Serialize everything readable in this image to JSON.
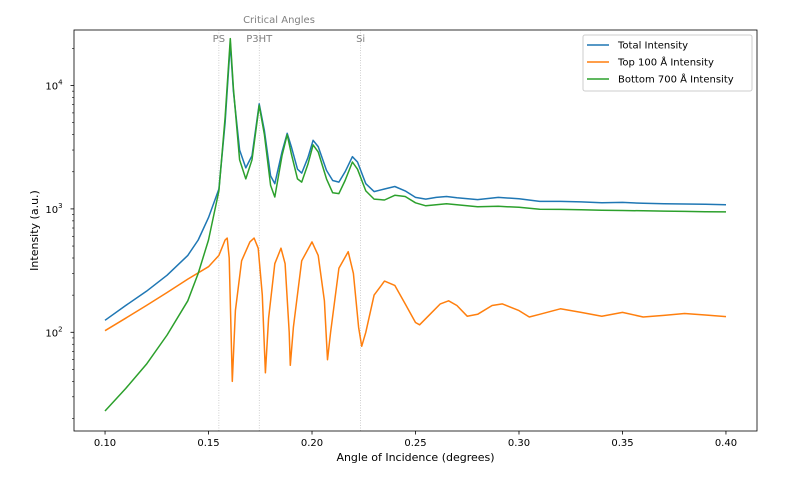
{
  "chart_data": {
    "type": "line",
    "xlabel": "Angle of Incidence (degrees)",
    "ylabel": "Intensity (a.u.)",
    "xlim": [
      0.085,
      0.415
    ],
    "ylim_log10": [
      1.2,
      4.45
    ],
    "yscale": "log",
    "grid": false,
    "legend_position": "top-right",
    "x_ticks": [
      {
        "value": 0.1,
        "label": "0.10"
      },
      {
        "value": 0.15,
        "label": "0.15"
      },
      {
        "value": 0.2,
        "label": "0.20"
      },
      {
        "value": 0.25,
        "label": "0.25"
      },
      {
        "value": 0.3,
        "label": "0.30"
      },
      {
        "value": 0.35,
        "label": "0.35"
      },
      {
        "value": 0.4,
        "label": "0.40"
      }
    ],
    "y_ticks": [
      {
        "value": 100,
        "base": "10",
        "exp": "2"
      },
      {
        "value": 1000,
        "base": "10",
        "exp": "3"
      },
      {
        "value": 10000,
        "base": "10",
        "exp": "4"
      }
    ],
    "critical_angles": {
      "title": "Critical Angles",
      "color": "#bbbbbb",
      "lines": [
        {
          "label": "PS",
          "x": 0.155
        },
        {
          "label": "P3HT",
          "x": 0.1745
        },
        {
          "label": "Si",
          "x": 0.2235
        }
      ]
    },
    "series": [
      {
        "name": "Total Intensity",
        "color": "#1f77b4",
        "points": [
          [
            0.1,
            125
          ],
          [
            0.11,
            165
          ],
          [
            0.12,
            215
          ],
          [
            0.13,
            290
          ],
          [
            0.14,
            420
          ],
          [
            0.145,
            560
          ],
          [
            0.15,
            850
          ],
          [
            0.155,
            1450
          ],
          [
            0.158,
            5000
          ],
          [
            0.1605,
            22000
          ],
          [
            0.162,
            9000
          ],
          [
            0.165,
            3000
          ],
          [
            0.168,
            2150
          ],
          [
            0.171,
            2700
          ],
          [
            0.1745,
            7100
          ],
          [
            0.177,
            4300
          ],
          [
            0.18,
            1850
          ],
          [
            0.182,
            1600
          ],
          [
            0.1855,
            2900
          ],
          [
            0.188,
            4100
          ],
          [
            0.19,
            3200
          ],
          [
            0.193,
            2100
          ],
          [
            0.195,
            1950
          ],
          [
            0.198,
            2600
          ],
          [
            0.2005,
            3600
          ],
          [
            0.203,
            3200
          ],
          [
            0.207,
            2050
          ],
          [
            0.21,
            1700
          ],
          [
            0.213,
            1650
          ],
          [
            0.216,
            2000
          ],
          [
            0.2195,
            2650
          ],
          [
            0.222,
            2400
          ],
          [
            0.226,
            1600
          ],
          [
            0.23,
            1380
          ],
          [
            0.235,
            1450
          ],
          [
            0.24,
            1520
          ],
          [
            0.245,
            1400
          ],
          [
            0.25,
            1240
          ],
          [
            0.255,
            1200
          ],
          [
            0.26,
            1240
          ],
          [
            0.265,
            1260
          ],
          [
            0.27,
            1230
          ],
          [
            0.28,
            1190
          ],
          [
            0.29,
            1240
          ],
          [
            0.3,
            1210
          ],
          [
            0.31,
            1150
          ],
          [
            0.32,
            1150
          ],
          [
            0.33,
            1140
          ],
          [
            0.34,
            1120
          ],
          [
            0.35,
            1130
          ],
          [
            0.36,
            1110
          ],
          [
            0.37,
            1100
          ],
          [
            0.38,
            1095
          ],
          [
            0.39,
            1090
          ],
          [
            0.4,
            1080
          ]
        ]
      },
      {
        "name": "Top 100 Å Intensity",
        "color": "#ff7f0e",
        "points": [
          [
            0.1,
            103
          ],
          [
            0.11,
            130
          ],
          [
            0.12,
            165
          ],
          [
            0.13,
            210
          ],
          [
            0.14,
            270
          ],
          [
            0.15,
            340
          ],
          [
            0.155,
            420
          ],
          [
            0.158,
            560
          ],
          [
            0.159,
            580
          ],
          [
            0.16,
            400
          ],
          [
            0.1615,
            40
          ],
          [
            0.163,
            150
          ],
          [
            0.166,
            380
          ],
          [
            0.17,
            540
          ],
          [
            0.172,
            580
          ],
          [
            0.174,
            480
          ],
          [
            0.176,
            200
          ],
          [
            0.1775,
            47
          ],
          [
            0.179,
            130
          ],
          [
            0.182,
            360
          ],
          [
            0.185,
            480
          ],
          [
            0.187,
            360
          ],
          [
            0.189,
            100
          ],
          [
            0.1895,
            54
          ],
          [
            0.191,
            110
          ],
          [
            0.195,
            380
          ],
          [
            0.2,
            540
          ],
          [
            0.203,
            420
          ],
          [
            0.206,
            180
          ],
          [
            0.2075,
            60
          ],
          [
            0.209,
            100
          ],
          [
            0.213,
            330
          ],
          [
            0.2175,
            450
          ],
          [
            0.22,
            300
          ],
          [
            0.2225,
            110
          ],
          [
            0.224,
            77
          ],
          [
            0.226,
            100
          ],
          [
            0.23,
            200
          ],
          [
            0.235,
            260
          ],
          [
            0.24,
            240
          ],
          [
            0.245,
            170
          ],
          [
            0.25,
            120
          ],
          [
            0.252,
            115
          ],
          [
            0.257,
            140
          ],
          [
            0.262,
            170
          ],
          [
            0.266,
            180
          ],
          [
            0.27,
            165
          ],
          [
            0.275,
            135
          ],
          [
            0.28,
            140
          ],
          [
            0.287,
            165
          ],
          [
            0.292,
            170
          ],
          [
            0.3,
            150
          ],
          [
            0.305,
            133
          ],
          [
            0.31,
            140
          ],
          [
            0.32,
            155
          ],
          [
            0.33,
            145
          ],
          [
            0.34,
            135
          ],
          [
            0.35,
            145
          ],
          [
            0.36,
            133
          ],
          [
            0.37,
            137
          ],
          [
            0.38,
            142
          ],
          [
            0.39,
            138
          ],
          [
            0.4,
            134
          ]
        ]
      },
      {
        "name": "Bottom 700 Å Intensity",
        "color": "#2ca02c",
        "points": [
          [
            0.1,
            23
          ],
          [
            0.11,
            35
          ],
          [
            0.12,
            55
          ],
          [
            0.13,
            95
          ],
          [
            0.14,
            180
          ],
          [
            0.145,
            300
          ],
          [
            0.15,
            560
          ],
          [
            0.155,
            1400
          ],
          [
            0.158,
            5500
          ],
          [
            0.1605,
            24000
          ],
          [
            0.162,
            9500
          ],
          [
            0.165,
            2500
          ],
          [
            0.168,
            1750
          ],
          [
            0.171,
            2500
          ],
          [
            0.1745,
            6900
          ],
          [
            0.177,
            4000
          ],
          [
            0.18,
            1550
          ],
          [
            0.182,
            1250
          ],
          [
            0.1855,
            2700
          ],
          [
            0.188,
            4000
          ],
          [
            0.19,
            2800
          ],
          [
            0.193,
            1750
          ],
          [
            0.195,
            1650
          ],
          [
            0.198,
            2300
          ],
          [
            0.2005,
            3300
          ],
          [
            0.203,
            2900
          ],
          [
            0.207,
            1750
          ],
          [
            0.21,
            1350
          ],
          [
            0.213,
            1330
          ],
          [
            0.216,
            1700
          ],
          [
            0.2195,
            2400
          ],
          [
            0.222,
            2100
          ],
          [
            0.226,
            1400
          ],
          [
            0.23,
            1200
          ],
          [
            0.235,
            1180
          ],
          [
            0.24,
            1290
          ],
          [
            0.245,
            1260
          ],
          [
            0.25,
            1120
          ],
          [
            0.255,
            1060
          ],
          [
            0.26,
            1080
          ],
          [
            0.265,
            1100
          ],
          [
            0.27,
            1080
          ],
          [
            0.28,
            1040
          ],
          [
            0.29,
            1050
          ],
          [
            0.3,
            1030
          ],
          [
            0.31,
            995
          ],
          [
            0.32,
            990
          ],
          [
            0.33,
            985
          ],
          [
            0.34,
            975
          ],
          [
            0.35,
            970
          ],
          [
            0.36,
            965
          ],
          [
            0.37,
            960
          ],
          [
            0.38,
            955
          ],
          [
            0.39,
            950
          ],
          [
            0.4,
            945
          ]
        ]
      }
    ]
  }
}
